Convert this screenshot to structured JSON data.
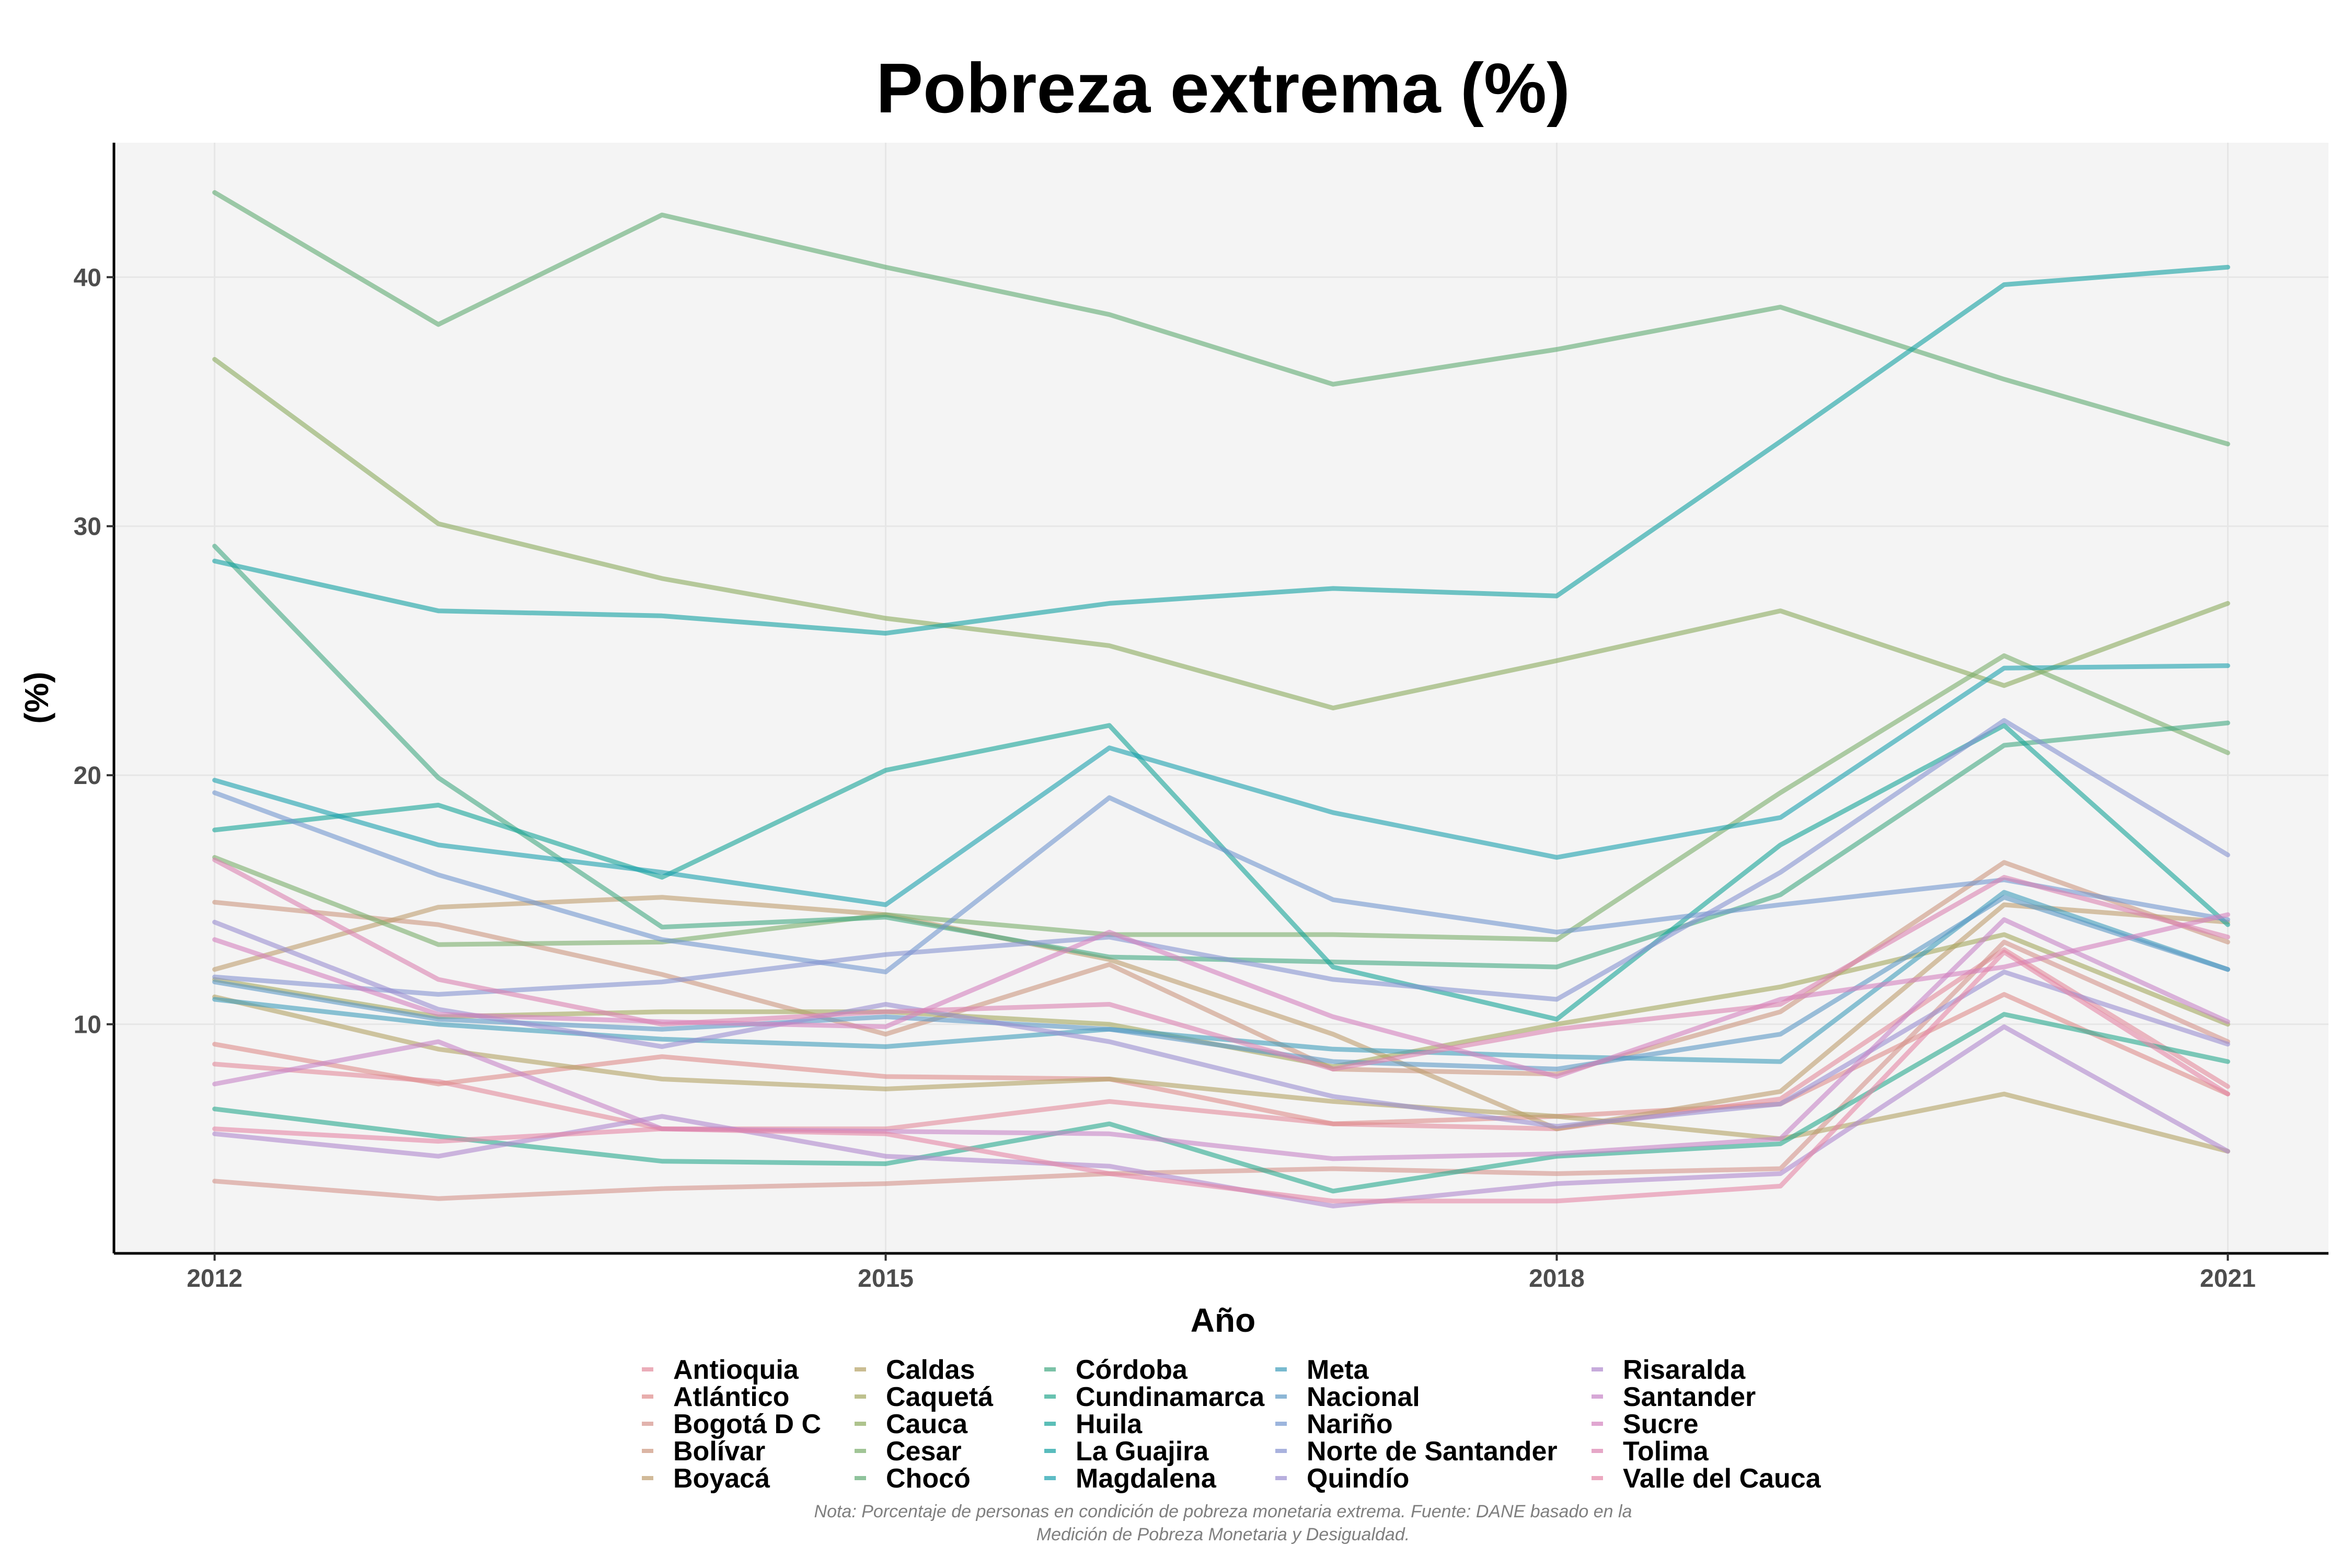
{
  "chart_data": {
    "type": "line",
    "title": "Pobreza extrema (%)",
    "xlabel": "Año",
    "ylabel": "(%)",
    "note": [
      "Nota: Porcentaje de personas en condición de pobreza monetaria extrema. Fuente: DANE basado en la",
      "Medición de Pobreza Monetaria y Desigualdad."
    ],
    "x": [
      2012,
      2013,
      2014,
      2015,
      2016,
      2017,
      2018,
      2019,
      2020,
      2021
    ],
    "xlim": [
      2011.55,
      2021.45
    ],
    "ylim": [
      0.8,
      45.4
    ],
    "x_ticks": [
      2012,
      2015,
      2018,
      2021
    ],
    "y_ticks": [
      10,
      20,
      30,
      40
    ],
    "grid": true,
    "legend_position": "bottom",
    "series": [
      {
        "name": "Antioquia",
        "color": "#E38A9B",
        "values": [
          8.4,
          7.7,
          5.8,
          5.8,
          6.9,
          6.0,
          5.8,
          7.0,
          13.0,
          7.5
        ]
      },
      {
        "name": "Atlántico",
        "color": "#DE8C8A",
        "values": [
          9.2,
          7.6,
          8.7,
          7.9,
          7.8,
          6.0,
          6.3,
          6.8,
          11.2,
          7.2
        ]
      },
      {
        "name": "Bogotá D C",
        "color": "#D4938A",
        "values": [
          3.7,
          3.0,
          3.4,
          3.6,
          4.0,
          4.2,
          4.0,
          4.2,
          13.3,
          9.3
        ]
      },
      {
        "name": "Bolívar",
        "color": "#CC967E",
        "values": [
          14.9,
          14.0,
          12.0,
          9.6,
          12.4,
          8.2,
          8.0,
          10.5,
          16.5,
          13.3
        ]
      },
      {
        "name": "Boyacá",
        "color": "#BE9C6E",
        "values": [
          12.2,
          14.7,
          15.1,
          14.4,
          12.6,
          9.6,
          5.8,
          7.3,
          14.8,
          14.1
        ]
      },
      {
        "name": "Caldas",
        "color": "#B3A164",
        "values": [
          11.1,
          9.0,
          7.8,
          7.4,
          7.8,
          6.9,
          6.3,
          5.4,
          7.2,
          4.9
        ]
      },
      {
        "name": "Caquetá",
        "color": "#A3A65E",
        "values": [
          11.8,
          10.3,
          10.5,
          10.5,
          10.0,
          8.3,
          10.0,
          11.5,
          13.6,
          10.0
        ]
      },
      {
        "name": "Cauca",
        "color": "#8BAA5D",
        "values": [
          36.7,
          30.1,
          27.9,
          26.3,
          25.2,
          22.7,
          24.6,
          26.6,
          23.6,
          26.9
        ]
      },
      {
        "name": "Cesar",
        "color": "#79AD6A",
        "values": [
          16.7,
          13.2,
          13.3,
          14.4,
          13.6,
          13.6,
          13.4,
          19.3,
          24.8,
          20.9
        ]
      },
      {
        "name": "Chocó",
        "color": "#5FAA72",
        "values": [
          43.4,
          38.1,
          42.5,
          40.4,
          38.5,
          35.7,
          37.1,
          38.8,
          35.9,
          33.3
        ]
      },
      {
        "name": "Córdoba",
        "color": "#43A882",
        "values": [
          29.2,
          19.9,
          13.9,
          14.3,
          12.7,
          12.5,
          12.3,
          15.2,
          21.2,
          22.1
        ]
      },
      {
        "name": "Cundinamarca",
        "color": "#28A88E",
        "values": [
          6.6,
          5.5,
          4.5,
          4.4,
          6.0,
          3.3,
          4.7,
          5.2,
          10.4,
          8.5
        ]
      },
      {
        "name": "Huila",
        "color": "#16A398",
        "values": [
          17.8,
          18.8,
          15.9,
          20.2,
          22.0,
          12.3,
          10.2,
          17.2,
          22.0,
          14.0
        ]
      },
      {
        "name": "La Guajira",
        "color": "#13A0A1",
        "values": [
          28.6,
          26.6,
          26.4,
          25.7,
          26.9,
          27.5,
          27.2,
          33.4,
          39.7,
          40.4
        ]
      },
      {
        "name": "Magdalena",
        "color": "#1AA0AD",
        "values": [
          19.8,
          17.2,
          16.1,
          14.8,
          21.1,
          18.5,
          16.7,
          18.3,
          24.3,
          24.4
        ]
      },
      {
        "name": "Meta",
        "color": "#3F9CBB",
        "values": [
          11.0,
          10.0,
          9.4,
          9.1,
          9.8,
          9.0,
          8.7,
          8.5,
          15.3,
          12.2
        ]
      },
      {
        "name": "Nacional",
        "color": "#5C98C5",
        "values": [
          11.7,
          10.2,
          9.8,
          10.3,
          9.8,
          8.5,
          8.2,
          9.6,
          15.1,
          12.2
        ]
      },
      {
        "name": "Nariño",
        "color": "#7296CF",
        "values": [
          19.3,
          16.0,
          13.4,
          12.1,
          19.1,
          15.0,
          13.7,
          14.8,
          15.8,
          14.2
        ]
      },
      {
        "name": "Norte de Santander",
        "color": "#8592D0",
        "values": [
          11.9,
          11.2,
          11.7,
          12.8,
          13.5,
          11.8,
          11.0,
          16.1,
          22.2,
          16.8
        ]
      },
      {
        "name": "Quindío",
        "color": "#9A8DD0",
        "values": [
          14.1,
          10.6,
          9.1,
          10.8,
          9.3,
          7.1,
          5.9,
          6.8,
          12.1,
          9.2
        ]
      },
      {
        "name": "Risaralda",
        "color": "#AF87CD",
        "values": [
          5.6,
          4.7,
          6.3,
          4.7,
          4.3,
          2.7,
          3.6,
          4.0,
          9.9,
          4.9
        ]
      },
      {
        "name": "Santander",
        "color": "#C683C6",
        "values": [
          7.6,
          9.3,
          5.8,
          5.7,
          5.6,
          4.6,
          4.8,
          5.4,
          14.2,
          10.1
        ]
      },
      {
        "name": "Sucre",
        "color": "#D381BE",
        "values": [
          13.4,
          10.4,
          10.1,
          9.9,
          13.7,
          10.3,
          7.9,
          11.0,
          12.3,
          14.4
        ]
      },
      {
        "name": "Tolima",
        "color": "#DB82B1",
        "values": [
          16.6,
          11.8,
          10.0,
          10.5,
          10.8,
          8.2,
          9.8,
          10.8,
          15.9,
          13.5
        ]
      },
      {
        "name": "Valle del Cauca",
        "color": "#E485A5",
        "values": [
          5.8,
          5.3,
          5.8,
          5.6,
          4.0,
          2.9,
          2.9,
          3.5,
          12.9,
          7.2
        ]
      }
    ]
  }
}
